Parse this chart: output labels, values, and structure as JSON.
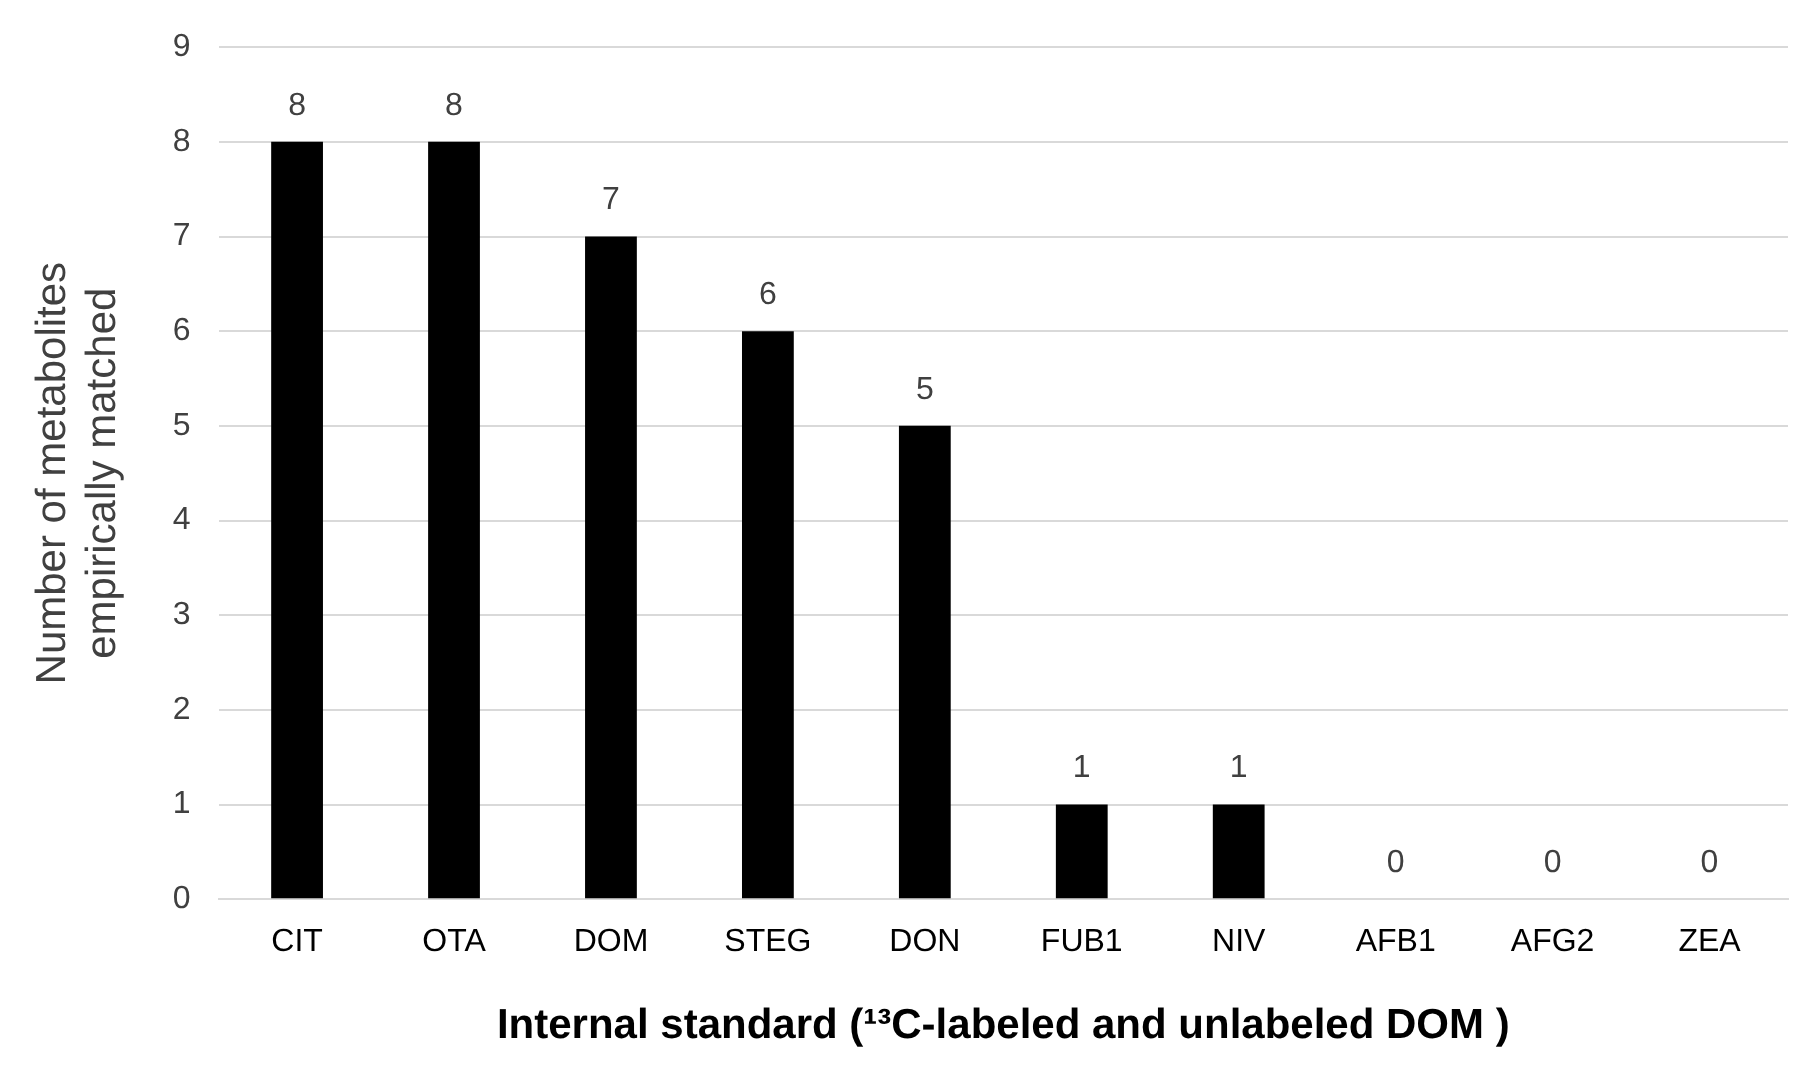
{
  "chart_data": {
    "type": "bar",
    "xlabel": "Internal standard (¹³C-labeled and unlabeled DOM )",
    "ylabel": "Number of metabolites empirically matched",
    "categories": [
      "CIT",
      "OTA",
      "DOM",
      "STEG",
      "DON",
      "FUB1",
      "NIV",
      "AFB1",
      "AFG2",
      "ZEA"
    ],
    "values": [
      8,
      8,
      7,
      6,
      5,
      1,
      1,
      0,
      0,
      0
    ],
    "color": "#000000",
    "ylim": [
      0,
      9
    ],
    "yticks": [
      0,
      1,
      2,
      3,
      4,
      5,
      6,
      7,
      8,
      9
    ],
    "grid": "y",
    "data_labels": true
  }
}
